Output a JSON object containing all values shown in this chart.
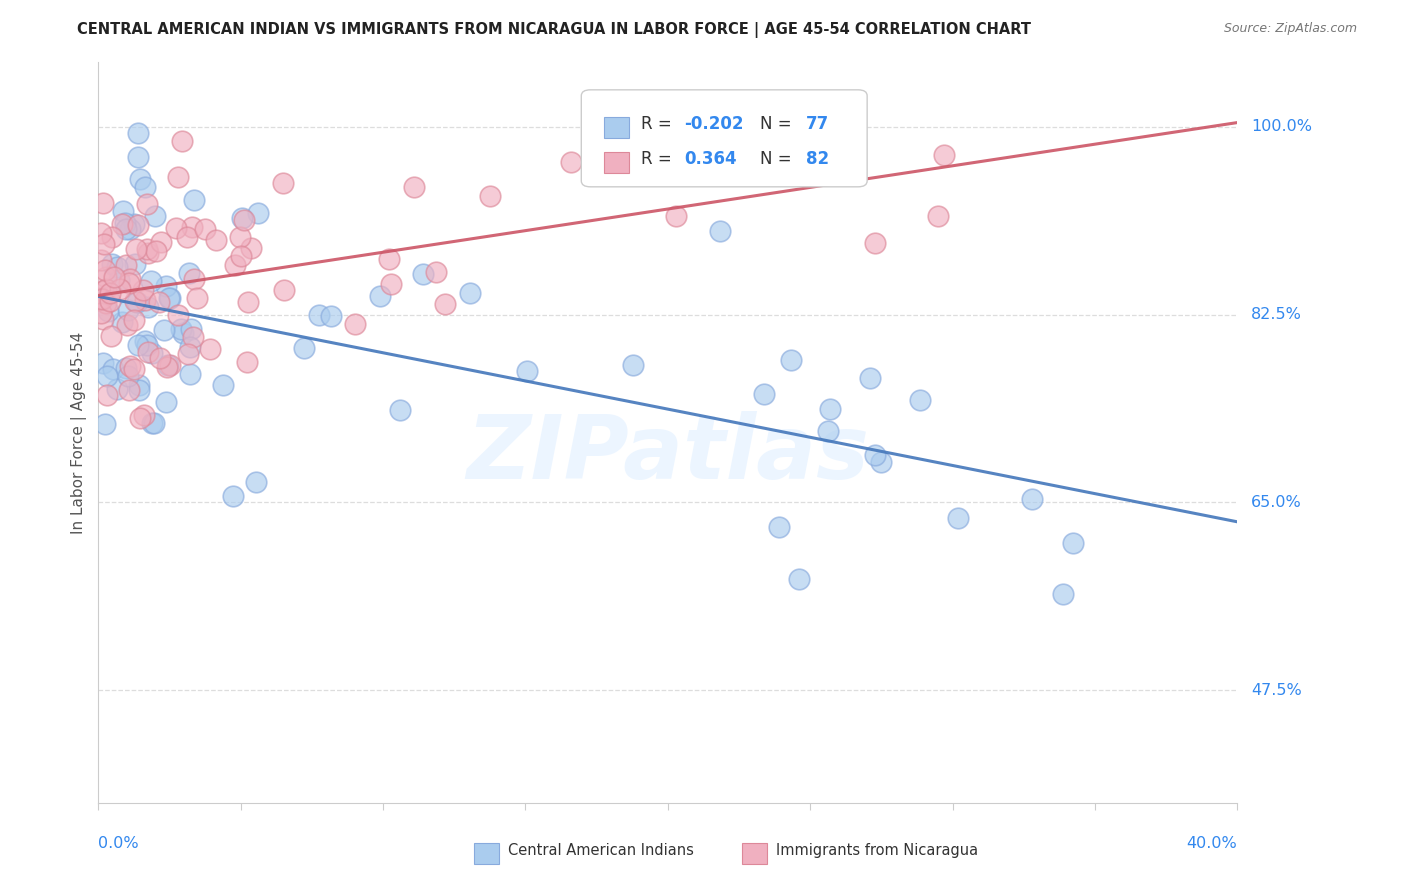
{
  "title": "CENTRAL AMERICAN INDIAN VS IMMIGRANTS FROM NICARAGUA IN LABOR FORCE | AGE 45-54 CORRELATION CHART",
  "source": "Source: ZipAtlas.com",
  "ylabel": "In Labor Force | Age 45-54",
  "xlim": [
    0.0,
    0.4
  ],
  "ylim": [
    0.37,
    1.06
  ],
  "y_label_vals": [
    0.475,
    0.65,
    0.825,
    1.0
  ],
  "y_label_texts": [
    "47.5%",
    "65.0%",
    "82.5%",
    "100.0%"
  ],
  "watermark_text": "ZIPatlas",
  "legend_r1": "-0.202",
  "legend_n1": "77",
  "legend_r2": "0.364",
  "legend_n2": "82",
  "blue_fill": "#aaccee",
  "blue_edge": "#88aadd",
  "pink_fill": "#f0b0c0",
  "pink_edge": "#dd8899",
  "blue_line": "#4477bb",
  "pink_line": "#cc5566",
  "grid_color": "#dddddd",
  "title_color": "#222222",
  "source_color": "#777777",
  "axis_label_color": "#555555",
  "tick_label_color": "#3388ee",
  "legend_blue_fill": "#aaccee",
  "legend_pink_fill": "#f0b0c0"
}
